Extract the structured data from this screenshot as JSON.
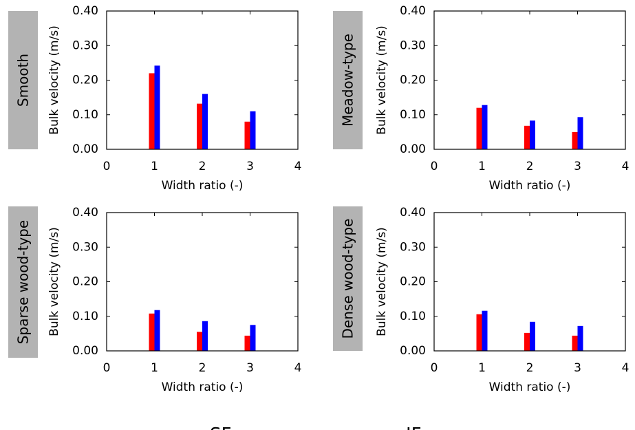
{
  "chart_data": [
    {
      "type": "bar",
      "side_label": "Smooth",
      "xlabel": "Width ratio (-)",
      "ylabel": "Bulk velocity (m/s)",
      "xlim": [
        0,
        4
      ],
      "ylim": [
        0,
        0.4
      ],
      "x_ticks": [
        "0",
        "1",
        "2",
        "3",
        "4"
      ],
      "y_ticks": [
        "0.00",
        "0.10",
        "0.20",
        "0.30",
        "0.40"
      ],
      "x": [
        1,
        2,
        3
      ],
      "series": [
        {
          "name": "SF",
          "values": [
            0.22,
            0.132,
            0.08
          ]
        },
        {
          "name": "IF",
          "values": [
            0.242,
            0.16,
            0.11
          ]
        }
      ]
    },
    {
      "type": "bar",
      "side_label": "Meadow-type",
      "xlabel": "Width ratio (-)",
      "ylabel": "Bulk velocity (m/s)",
      "xlim": [
        0,
        4
      ],
      "ylim": [
        0,
        0.4
      ],
      "x_ticks": [
        "0",
        "1",
        "2",
        "3",
        "4"
      ],
      "y_ticks": [
        "0.00",
        "0.10",
        "0.20",
        "0.30",
        "0.40"
      ],
      "x": [
        1,
        2,
        3
      ],
      "series": [
        {
          "name": "SF",
          "values": [
            0.12,
            0.068,
            0.05
          ]
        },
        {
          "name": "IF",
          "values": [
            0.128,
            0.083,
            0.093
          ]
        }
      ]
    },
    {
      "type": "bar",
      "side_label": "Sparse wood-type",
      "xlabel": "Width ratio (-)",
      "ylabel": "Bulk velocity (m/s)",
      "xlim": [
        0,
        4
      ],
      "ylim": [
        0,
        0.4
      ],
      "x_ticks": [
        "0",
        "1",
        "2",
        "3",
        "4"
      ],
      "y_ticks": [
        "0.00",
        "0.10",
        "0.20",
        "0.30",
        "0.40"
      ],
      "x": [
        1,
        2,
        3
      ],
      "series": [
        {
          "name": "SF",
          "values": [
            0.108,
            0.055,
            0.044
          ]
        },
        {
          "name": "IF",
          "values": [
            0.118,
            0.086,
            0.075
          ]
        }
      ]
    },
    {
      "type": "bar",
      "side_label": "Dense wood-type",
      "xlabel": "Width ratio (-)",
      "ylabel": "Bulk velocity (m/s)",
      "xlim": [
        0,
        4
      ],
      "ylim": [
        0,
        0.4
      ],
      "x_ticks": [
        "0",
        "1",
        "2",
        "3",
        "4"
      ],
      "y_ticks": [
        "0.00",
        "0.10",
        "0.20",
        "0.30",
        "0.40"
      ],
      "x": [
        1,
        2,
        3
      ],
      "series": [
        {
          "name": "SF",
          "values": [
            0.106,
            0.052,
            0.044
          ]
        },
        {
          "name": "IF",
          "values": [
            0.116,
            0.084,
            0.072
          ]
        }
      ]
    }
  ],
  "legend": [
    {
      "name": "SF",
      "color": "#ff0000"
    },
    {
      "name": "IF",
      "color": "#0000ff"
    }
  ],
  "colors": {
    "SF": "#ff0000",
    "IF": "#0000ff",
    "side_box": "#b3b3b3"
  }
}
